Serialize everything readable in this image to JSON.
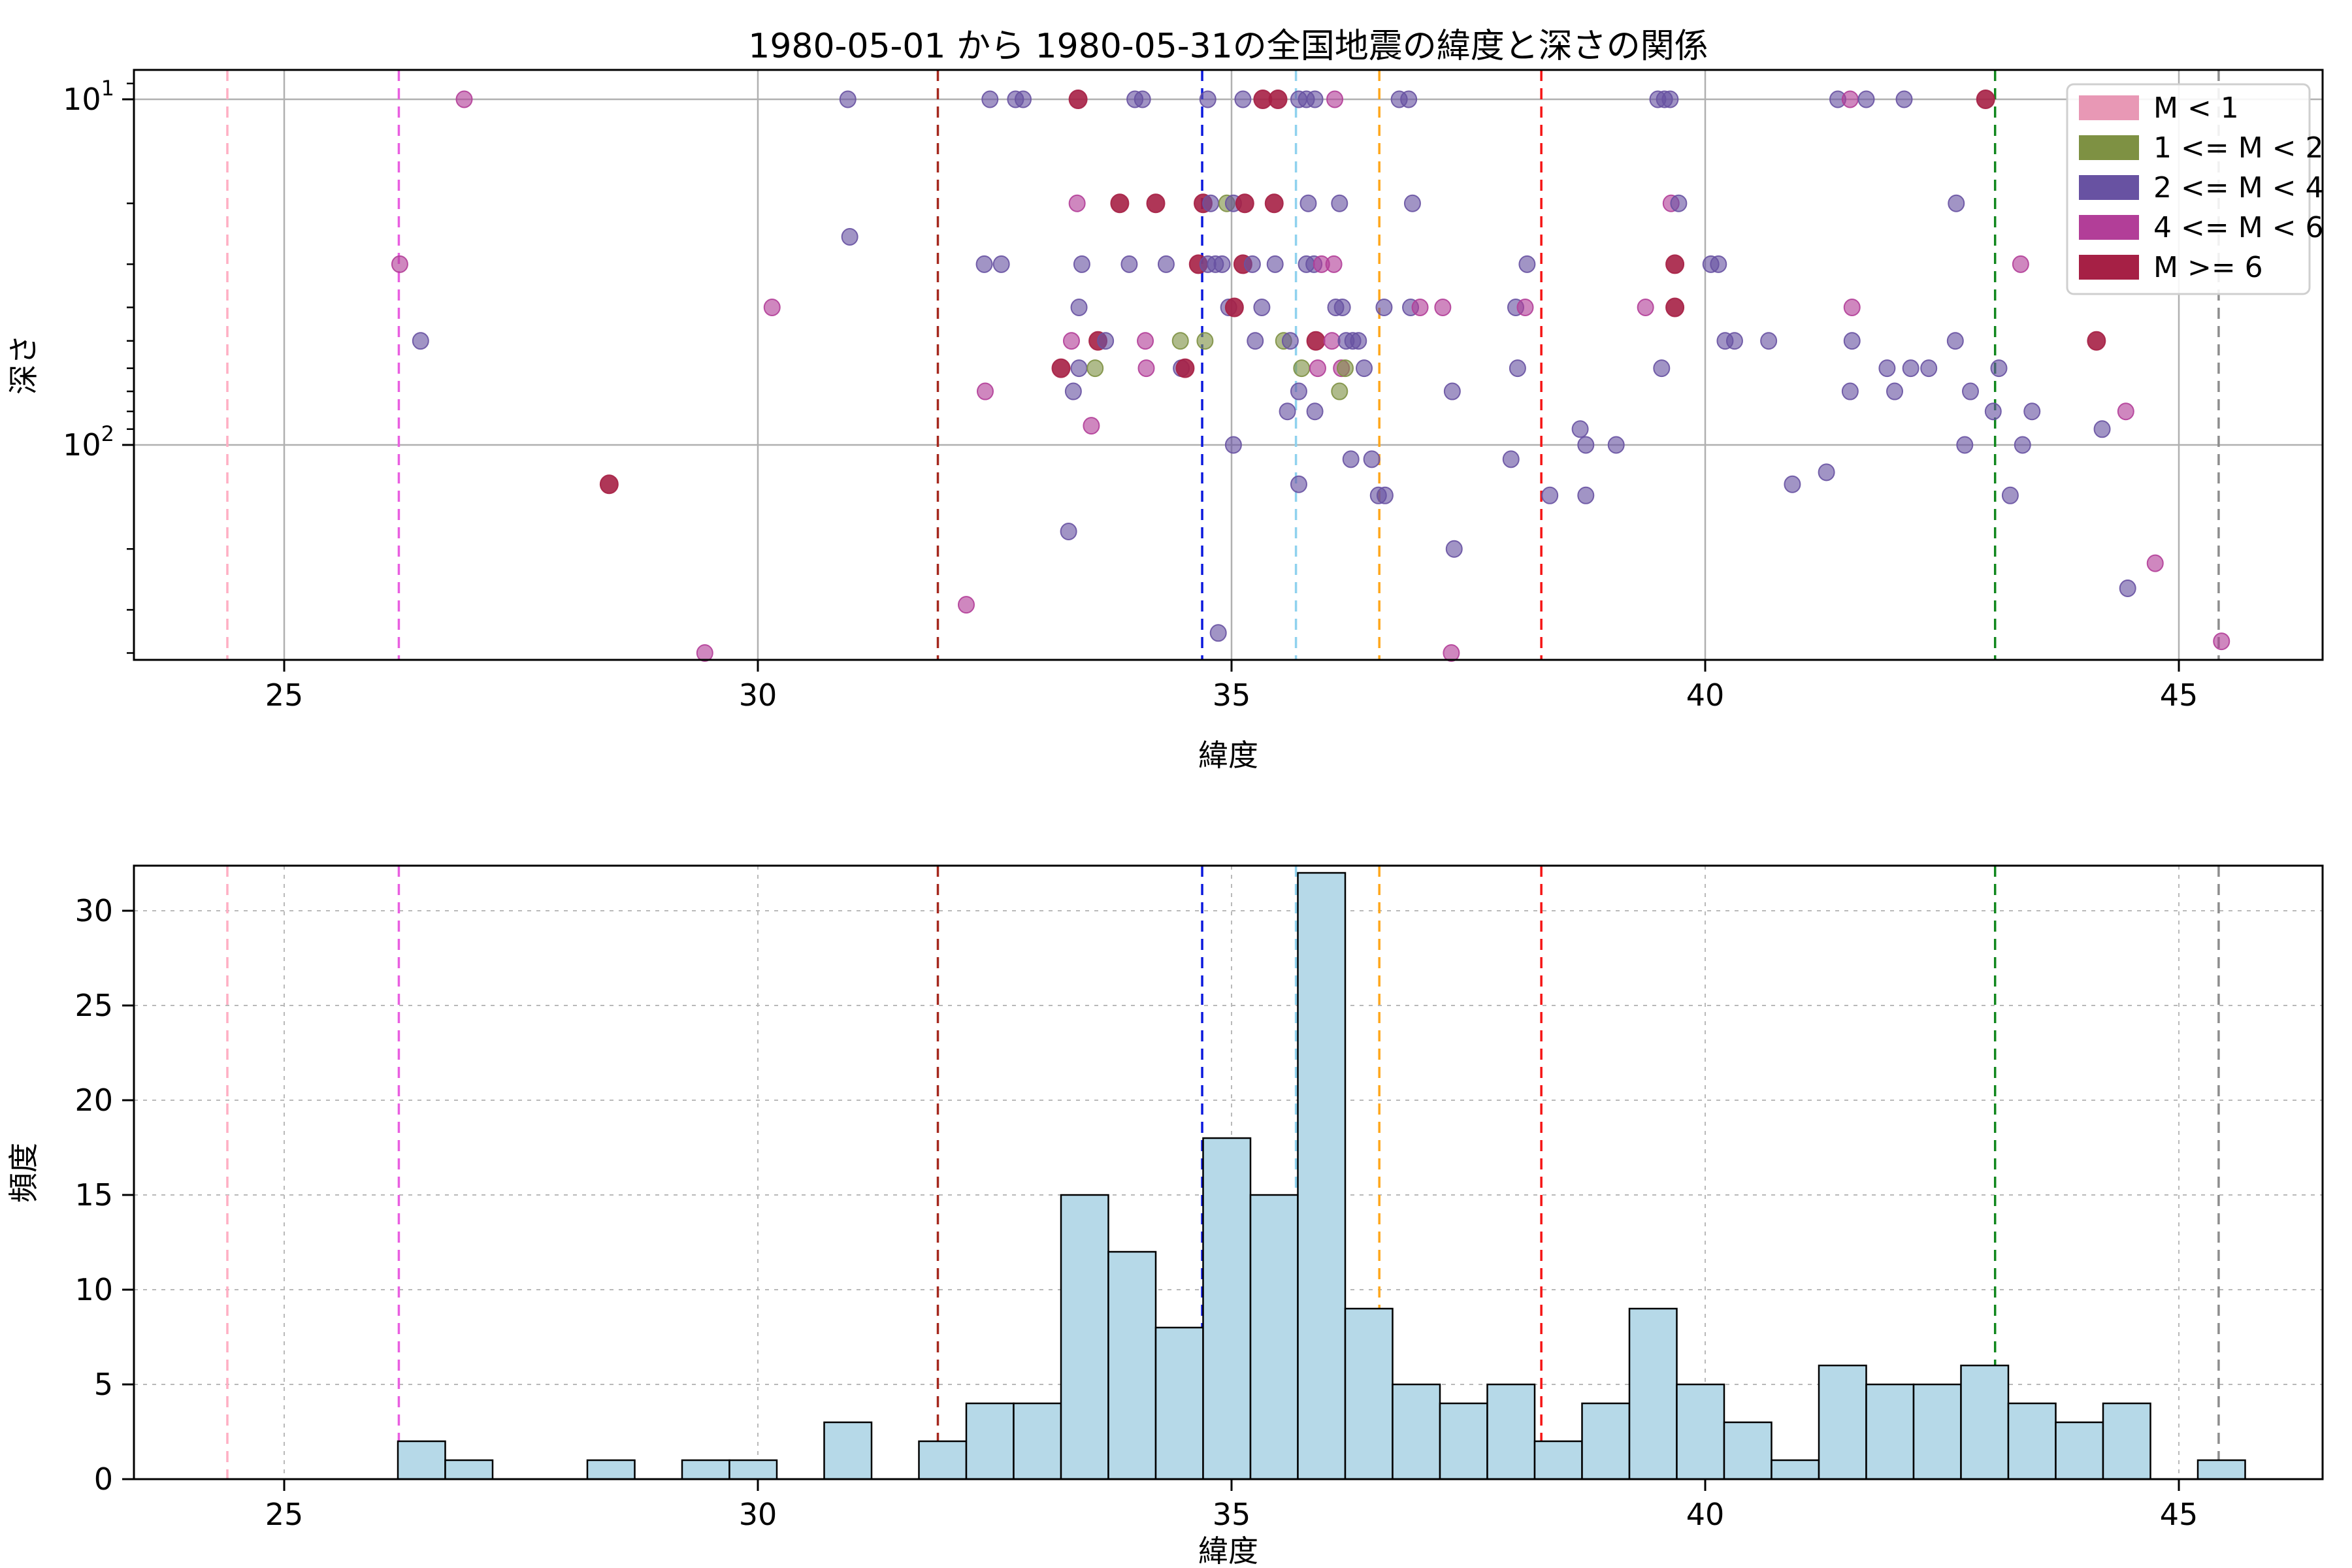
{
  "title": "1980-05-01 から 1980-05-31の全国地震の緯度と深さの関係",
  "scatter_plot": {
    "xlabel": "緯度",
    "ylabel": "深さ",
    "yscale": "log-inverted",
    "xticks": [
      25,
      30,
      35,
      40,
      45
    ],
    "ytick_labels": [
      {
        "base": "10",
        "exp": "1",
        "depth": 10
      },
      {
        "base": "10",
        "exp": "2",
        "depth": 100
      }
    ],
    "minor_tick_depths": [
      9,
      20,
      30,
      40,
      50,
      60,
      70,
      80,
      90,
      200,
      300,
      400
    ]
  },
  "hist_plot": {
    "xlabel": "緯度",
    "ylabel": "頻度",
    "xticks": [
      25,
      30,
      35,
      40,
      45
    ],
    "yticks": [
      0,
      5,
      10,
      15,
      20,
      25,
      30
    ],
    "bar_color": "#b6d9e8",
    "bar_edge_color": "#000000"
  },
  "legend": {
    "entries": [
      {
        "label": "M < 1",
        "color": "#e898b5"
      },
      {
        "label": "1 <= M < 2",
        "color": "#7e9143"
      },
      {
        "label": "2 <= M < 4",
        "color": "#6852a2"
      },
      {
        "label": "4 <= M < 6",
        "color": "#b23e98"
      },
      {
        "label": "M >= 6",
        "color": "#a62045"
      }
    ]
  },
  "city_lines": [
    {
      "lat": 24.4,
      "color": "#ffafc4"
    },
    {
      "lat": 26.21,
      "color": "#e95fe0"
    },
    {
      "lat": 31.9,
      "color": "#a5281e"
    },
    {
      "lat": 34.69,
      "color": "#0a18dd"
    },
    {
      "lat": 35.68,
      "color": "#8fd2ee"
    },
    {
      "lat": 36.56,
      "color": "#ffa71c"
    },
    {
      "lat": 38.27,
      "color": "#f61414"
    },
    {
      "lat": 43.06,
      "color": "#11871d"
    },
    {
      "lat": 45.42,
      "color": "#8d8d8d"
    }
  ],
  "chart_data": [
    {
      "type": "scatter",
      "title": "1980-05-01 から 1980-05-31の全国地震の緯度と深さの関係",
      "xlabel": "緯度",
      "ylabel": "深さ",
      "xlim": [
        23.4,
        46.5
      ],
      "ylim": [
        8.2,
        420
      ],
      "y_log": true,
      "y_inverted": true,
      "grid": "solid",
      "legend_position": "upper right",
      "series_classes": [
        "M < 1",
        "1 <= M < 2",
        "2 <= M < 4",
        "4 <= M < 6",
        "M >= 6"
      ],
      "points": [
        [
          26.9,
          10,
          3
        ],
        [
          30.95,
          10,
          2
        ],
        [
          32.45,
          10,
          2
        ],
        [
          32.72,
          10,
          2
        ],
        [
          32.8,
          10,
          2
        ],
        [
          33.38,
          10,
          4
        ],
        [
          33.98,
          10,
          2
        ],
        [
          34.06,
          10,
          2
        ],
        [
          34.75,
          10,
          2
        ],
        [
          35.12,
          10,
          2
        ],
        [
          35.33,
          10,
          4
        ],
        [
          35.49,
          10,
          4
        ],
        [
          35.71,
          10,
          2
        ],
        [
          35.79,
          10,
          2
        ],
        [
          35.88,
          10,
          2
        ],
        [
          36.09,
          10,
          3
        ],
        [
          36.77,
          10,
          2
        ],
        [
          36.87,
          10,
          2
        ],
        [
          39.5,
          10,
          2
        ],
        [
          39.57,
          10,
          2
        ],
        [
          39.63,
          10,
          2
        ],
        [
          41.4,
          10,
          2
        ],
        [
          41.53,
          10,
          3
        ],
        [
          41.7,
          10,
          2
        ],
        [
          42.1,
          10,
          2
        ],
        [
          42.96,
          10,
          4
        ],
        [
          30.97,
          25,
          2
        ],
        [
          33.37,
          20,
          3
        ],
        [
          33.82,
          20,
          4
        ],
        [
          34.2,
          20,
          4
        ],
        [
          34.7,
          20,
          4
        ],
        [
          34.78,
          20,
          2
        ],
        [
          34.95,
          20,
          1
        ],
        [
          35.02,
          20,
          2
        ],
        [
          35.14,
          20,
          4
        ],
        [
          35.45,
          20,
          4
        ],
        [
          35.81,
          20,
          2
        ],
        [
          36.14,
          20,
          2
        ],
        [
          36.91,
          20,
          2
        ],
        [
          39.64,
          20,
          3
        ],
        [
          39.72,
          20,
          2
        ],
        [
          42.65,
          20,
          2
        ],
        [
          26.22,
          30,
          3
        ],
        [
          32.39,
          30,
          2
        ],
        [
          32.57,
          30,
          2
        ],
        [
          33.42,
          30,
          2
        ],
        [
          33.92,
          30,
          2
        ],
        [
          34.31,
          30,
          2
        ],
        [
          34.65,
          30,
          4
        ],
        [
          34.75,
          30,
          2
        ],
        [
          34.83,
          30,
          2
        ],
        [
          34.9,
          30,
          2
        ],
        [
          35.12,
          30,
          4
        ],
        [
          35.22,
          30,
          2
        ],
        [
          35.46,
          30,
          2
        ],
        [
          35.79,
          30,
          2
        ],
        [
          35.87,
          30,
          2
        ],
        [
          35.95,
          30,
          3
        ],
        [
          36.08,
          30,
          3
        ],
        [
          38.12,
          30,
          2
        ],
        [
          39.68,
          30,
          4
        ],
        [
          40.06,
          30,
          2
        ],
        [
          40.14,
          30,
          2
        ],
        [
          43.33,
          30,
          3
        ],
        [
          30.15,
          40,
          3
        ],
        [
          33.39,
          40,
          2
        ],
        [
          34.97,
          40,
          2
        ],
        [
          35.03,
          40,
          4
        ],
        [
          35.32,
          40,
          2
        ],
        [
          36.1,
          40,
          2
        ],
        [
          36.17,
          40,
          2
        ],
        [
          36.61,
          40,
          2
        ],
        [
          36.89,
          40,
          2
        ],
        [
          36.99,
          40,
          3
        ],
        [
          37.23,
          40,
          3
        ],
        [
          38.0,
          40,
          2
        ],
        [
          38.1,
          40,
          3
        ],
        [
          39.37,
          40,
          3
        ],
        [
          39.68,
          40,
          4
        ],
        [
          41.55,
          40,
          3
        ],
        [
          26.44,
          50,
          2
        ],
        [
          33.31,
          50,
          3
        ],
        [
          33.59,
          50,
          4
        ],
        [
          33.67,
          50,
          2
        ],
        [
          34.09,
          50,
          3
        ],
        [
          34.46,
          50,
          1
        ],
        [
          34.72,
          50,
          1
        ],
        [
          35.25,
          50,
          2
        ],
        [
          35.55,
          50,
          1
        ],
        [
          35.62,
          50,
          2
        ],
        [
          35.89,
          50,
          4
        ],
        [
          36.06,
          50,
          3
        ],
        [
          36.21,
          50,
          2
        ],
        [
          36.28,
          50,
          2
        ],
        [
          36.34,
          50,
          2
        ],
        [
          40.21,
          50,
          2
        ],
        [
          40.31,
          50,
          2
        ],
        [
          40.67,
          50,
          2
        ],
        [
          41.55,
          50,
          2
        ],
        [
          42.64,
          50,
          2
        ],
        [
          44.13,
          50,
          4
        ],
        [
          33.2,
          60,
          4
        ],
        [
          33.39,
          60,
          2
        ],
        [
          33.56,
          60,
          1
        ],
        [
          34.1,
          60,
          3
        ],
        [
          34.47,
          60,
          2
        ],
        [
          34.51,
          60,
          4
        ],
        [
          35.74,
          60,
          1
        ],
        [
          35.91,
          60,
          3
        ],
        [
          36.16,
          60,
          3
        ],
        [
          36.2,
          60,
          1
        ],
        [
          36.4,
          60,
          2
        ],
        [
          38.02,
          60,
          2
        ],
        [
          39.54,
          60,
          2
        ],
        [
          41.92,
          60,
          2
        ],
        [
          42.17,
          60,
          2
        ],
        [
          42.36,
          60,
          2
        ],
        [
          43.1,
          60,
          2
        ],
        [
          32.4,
          70,
          3
        ],
        [
          33.33,
          70,
          2
        ],
        [
          35.71,
          70,
          2
        ],
        [
          36.14,
          70,
          1
        ],
        [
          37.33,
          70,
          2
        ],
        [
          41.53,
          70,
          2
        ],
        [
          42.0,
          70,
          2
        ],
        [
          42.8,
          70,
          2
        ],
        [
          35.59,
          80,
          2
        ],
        [
          35.88,
          80,
          2
        ],
        [
          43.04,
          80,
          2
        ],
        [
          43.45,
          80,
          2
        ],
        [
          44.44,
          80,
          3
        ],
        [
          33.52,
          88,
          3
        ],
        [
          38.68,
          90,
          2
        ],
        [
          44.19,
          90,
          2
        ],
        [
          35.02,
          100,
          2
        ],
        [
          38.74,
          100,
          2
        ],
        [
          39.06,
          100,
          2
        ],
        [
          42.74,
          100,
          2
        ],
        [
          43.35,
          100,
          2
        ],
        [
          36.26,
          110,
          2
        ],
        [
          36.48,
          110,
          2
        ],
        [
          37.95,
          110,
          2
        ],
        [
          41.28,
          120,
          2
        ],
        [
          28.43,
          130,
          4
        ],
        [
          35.71,
          130,
          2
        ],
        [
          40.92,
          130,
          2
        ],
        [
          36.55,
          140,
          2
        ],
        [
          36.62,
          140,
          2
        ],
        [
          38.36,
          140,
          2
        ],
        [
          38.74,
          140,
          2
        ],
        [
          43.22,
          140,
          2
        ],
        [
          33.28,
          178,
          2
        ],
        [
          37.35,
          200,
          2
        ],
        [
          44.75,
          220,
          3
        ],
        [
          44.46,
          260,
          2
        ],
        [
          32.2,
          290,
          3
        ],
        [
          34.86,
          350,
          2
        ],
        [
          45.45,
          370,
          3
        ],
        [
          29.44,
          400,
          3
        ],
        [
          37.32,
          400,
          3
        ]
      ]
    },
    {
      "type": "bar",
      "xlabel": "緯度",
      "ylabel": "頻度",
      "xlim": [
        23.4,
        46.5
      ],
      "ylim": [
        0,
        32.4
      ],
      "bin_start": 26.2,
      "bin_width": 0.5,
      "values": [
        2,
        1,
        0,
        0,
        1,
        0,
        1,
        1,
        0,
        3,
        0,
        2,
        4,
        4,
        15,
        12,
        8,
        18,
        15,
        32,
        9,
        5,
        4,
        5,
        2,
        4,
        9,
        5,
        3,
        1,
        6,
        5,
        5,
        6,
        4,
        3,
        4,
        0,
        1
      ],
      "grid": "dashed"
    }
  ]
}
